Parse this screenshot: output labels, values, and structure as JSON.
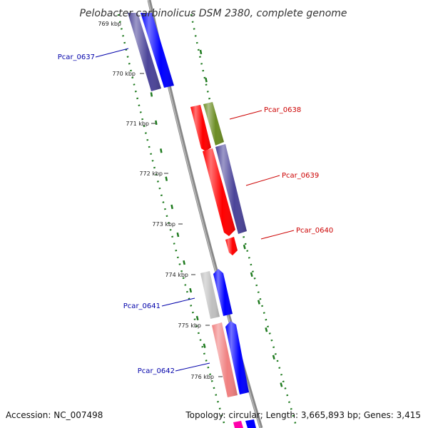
{
  "title": "Pelobacter carbinolicus DSM 2380, complete genome",
  "accession_text": "Accession: NC_007498",
  "summary_text": "Topology: circular; Length: 3,665,893 bp; Genes: 3,415",
  "ticks": [
    "769 kbp",
    "770 kbp",
    "771 kbp",
    "772 kbp",
    "773 kbp",
    "774 kbp",
    "775 kbp",
    "776 kbp"
  ],
  "genes": {
    "pcar_0637": {
      "label": "Pcar_0637",
      "color": "#0000aa"
    },
    "pcar_0638": {
      "label": "Pcar_0638",
      "color": "#cc0000"
    },
    "pcar_0639": {
      "label": "Pcar_0639",
      "color": "#cc0000"
    },
    "pcar_0640": {
      "label": "Pcar_0640",
      "color": "#cc0000"
    },
    "pcar_0641": {
      "label": "Pcar_0641",
      "color": "#0000aa"
    },
    "pcar_0642": {
      "label": "Pcar_0642",
      "color": "#0000aa"
    }
  },
  "colors": {
    "backbone": "#888888",
    "gc_dots": "#1e7a1e",
    "cds": "#ff0000",
    "cds_forward": "#0000ff",
    "cog_purple": "#4b4499",
    "cog_olive": "#6b8c23",
    "cog_gray": "#c0c0c0",
    "cog_pink": "#f08080",
    "cog_magenta": "#ff00aa"
  }
}
